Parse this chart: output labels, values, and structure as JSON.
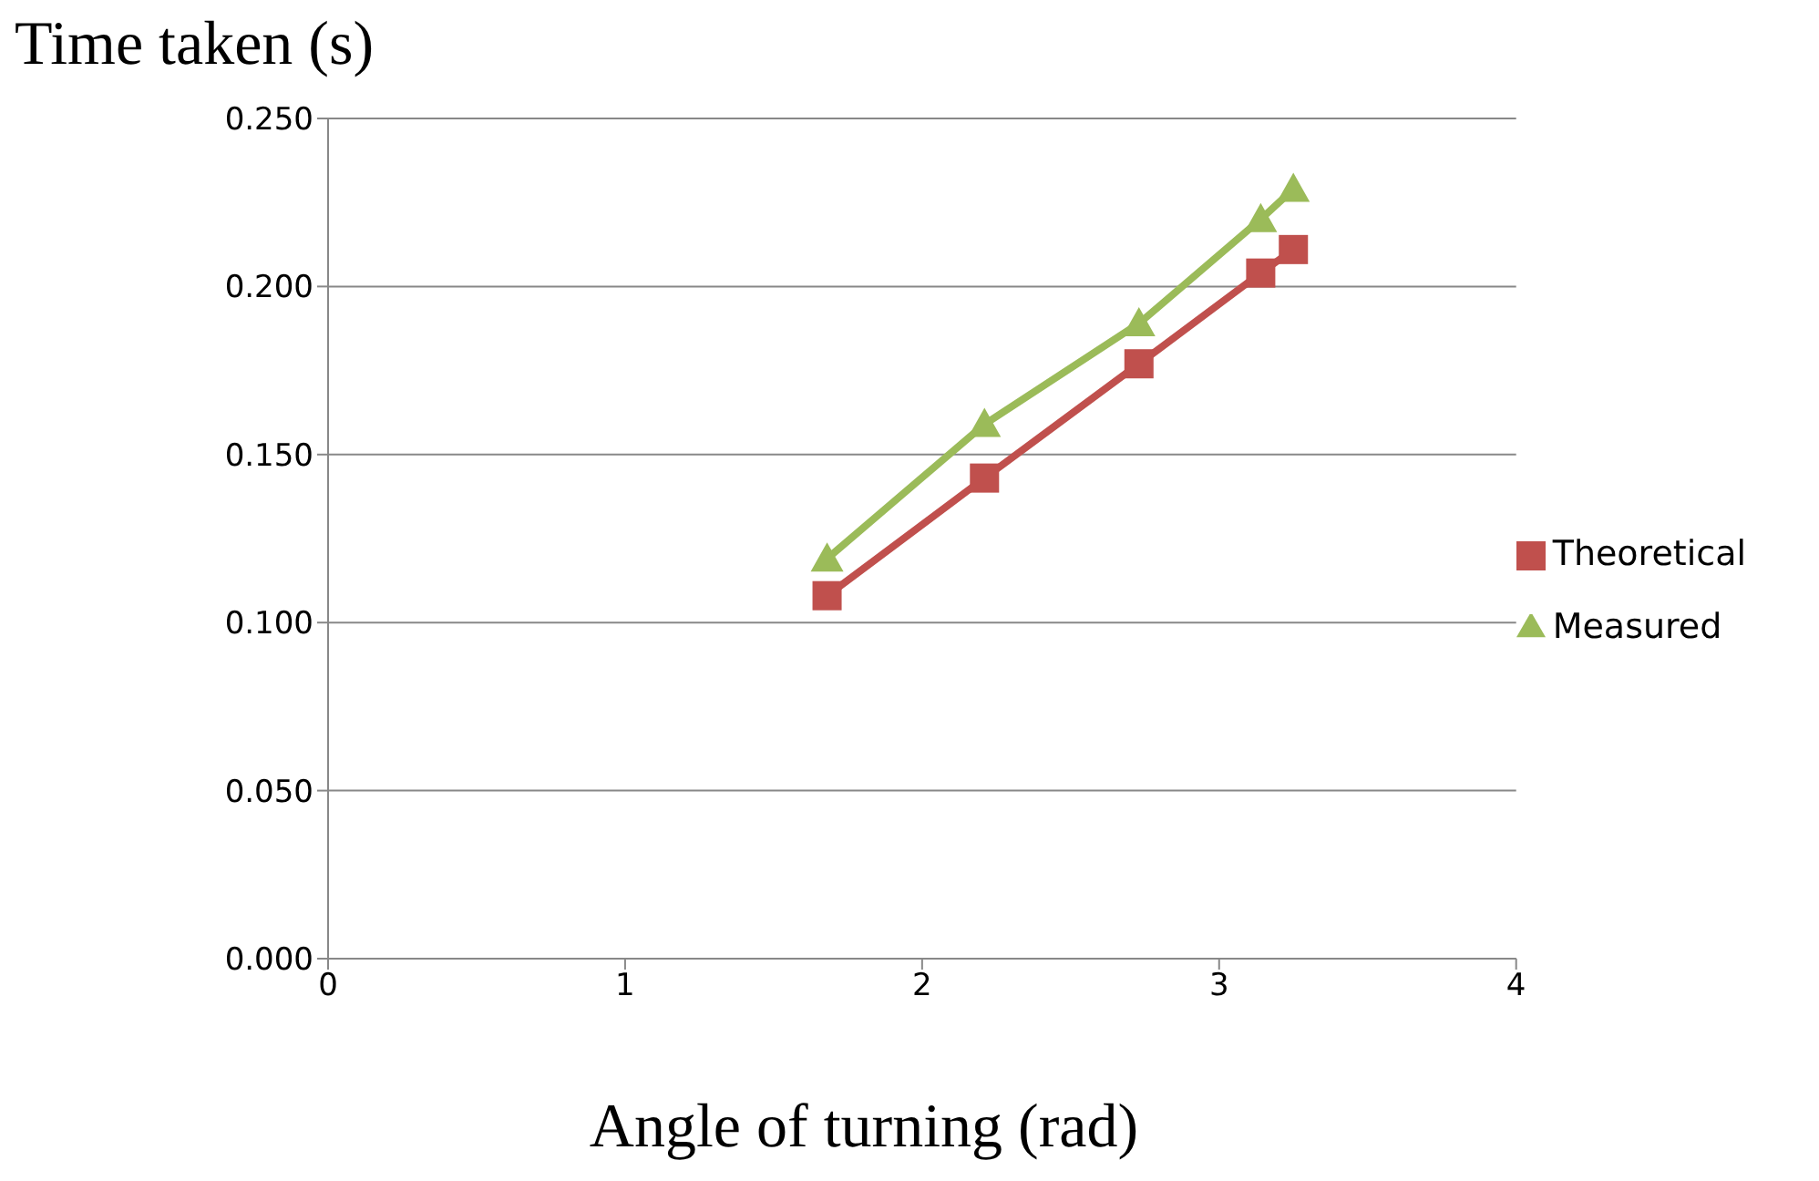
{
  "chart_data": {
    "type": "line",
    "title": "Time taken (s)",
    "xlabel": "Angle of turning (rad)",
    "x": [
      1.68,
      2.21,
      2.73,
      3.14,
      3.25
    ],
    "series": [
      {
        "name": "Theoretical",
        "color": "#c0504d",
        "marker": "square",
        "values": [
          0.108,
          0.143,
          0.177,
          0.204,
          0.211
        ]
      },
      {
        "name": "Measured",
        "color": "#9bbb59",
        "marker": "triangle",
        "values": [
          0.119,
          0.159,
          0.189,
          0.22,
          0.229
        ]
      }
    ],
    "xlim": [
      0,
      4
    ],
    "xticks": [
      0,
      1,
      2,
      3,
      4
    ],
    "ylim": [
      0,
      0.25
    ],
    "yticks": [
      {
        "value": 0,
        "label": "0.000"
      },
      {
        "value": 0.05,
        "label": "0.050"
      },
      {
        "value": 0.1,
        "label": "0.100"
      },
      {
        "value": 0.15,
        "label": "0.150"
      },
      {
        "value": 0.2,
        "label": "0.200"
      },
      {
        "value": 0.25,
        "label": "0.250"
      }
    ],
    "grid": "y",
    "legend": "right",
    "line_style": "solid"
  }
}
